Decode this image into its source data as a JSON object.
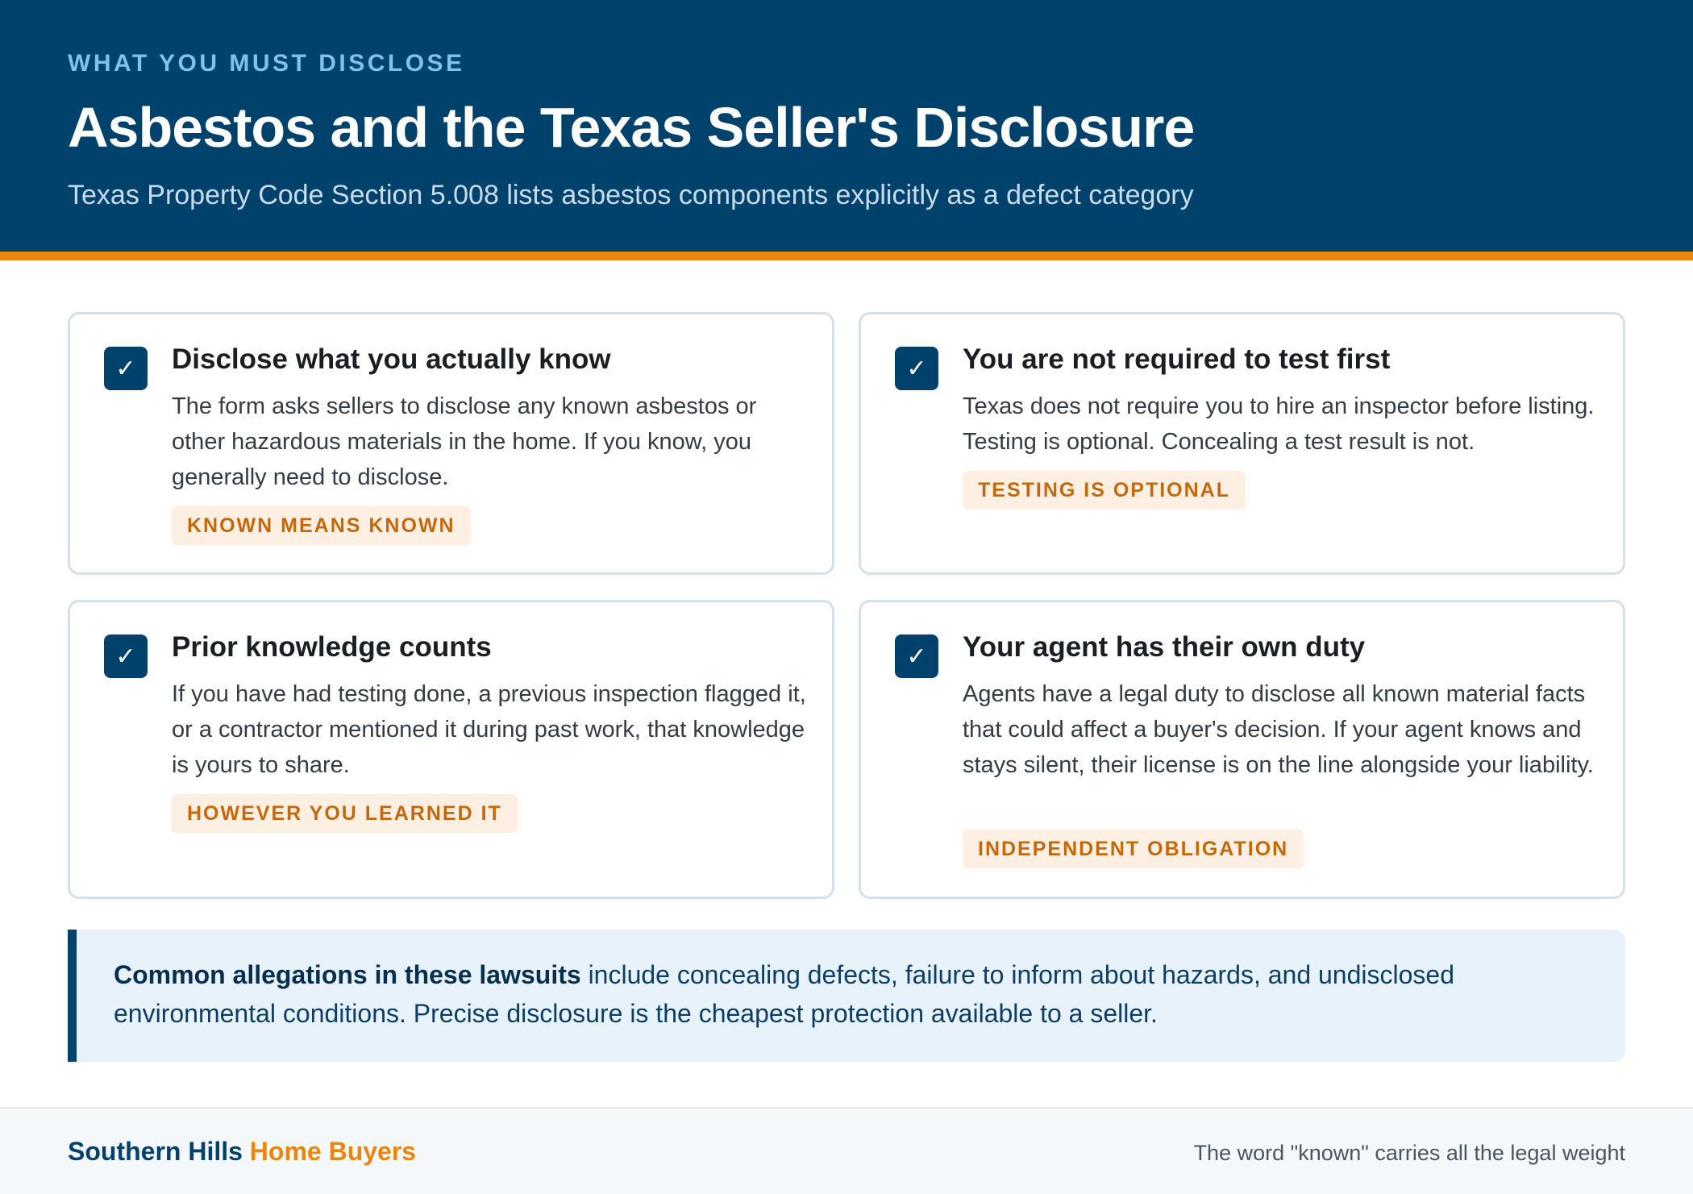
{
  "header": {
    "eyebrow": "WHAT YOU MUST DISCLOSE",
    "title": "Asbestos and the Texas Seller's Disclosure",
    "subtitle": "Texas Property Code Section 5.008 lists asbestos components explicitly as a defect category",
    "background_color": "#00426b",
    "accent_color": "#e8860e"
  },
  "cards": [
    {
      "icon": "check-icon",
      "title": "Disclose what you actually know",
      "body": "The form asks sellers to disclose any known asbestos or other hazardous materials in the home. If you know, you generally need to disclose.",
      "tag": "KNOWN MEANS KNOWN"
    },
    {
      "icon": "check-icon",
      "title": "You are not required to test first",
      "body": "Texas does not require you to hire an inspector before listing. Testing is optional. Concealing a test result is not.",
      "tag": "TESTING IS OPTIONAL"
    },
    {
      "icon": "check-icon",
      "title": "Prior knowledge counts",
      "body": "If you have had testing done, a previous inspection flagged it, or a contractor mentioned it during past work, that knowledge is yours to share.",
      "tag": "HOWEVER YOU LEARNED IT"
    },
    {
      "icon": "check-icon",
      "title": "Your agent has their own duty",
      "body": "Agents have a legal duty to disclose all known material facts that could affect a buyer's decision. If your agent knows and stays silent, their license is on the line alongside your liability.",
      "tag": "INDEPENDENT OBLIGATION"
    }
  ],
  "callout": {
    "lead": "Common allegations in these lawsuits",
    "text": " include concealing defects, failure to inform about hazards, and undisclosed environmental conditions. Precise disclosure is the cheapest protection available to a seller."
  },
  "footer": {
    "brand_part1": "Southern Hills",
    "brand_part2": "Home Buyers",
    "tagline": "The word \"known\" carries all the legal weight"
  }
}
